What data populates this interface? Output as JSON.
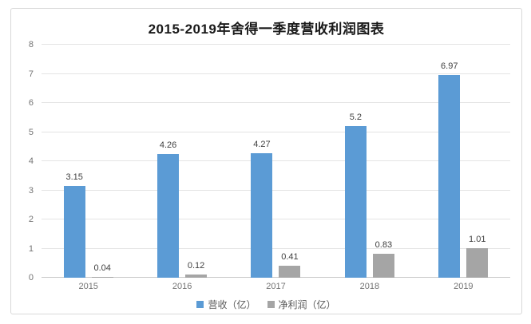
{
  "chart_data": {
    "type": "bar",
    "title": "2015-2019年舍得一季度营收利润图表",
    "categories": [
      "2015",
      "2016",
      "2017",
      "2018",
      "2019"
    ],
    "series": [
      {
        "name": "营收（亿）",
        "color": "#5B9BD5",
        "values": [
          3.15,
          4.26,
          4.27,
          5.2,
          6.97
        ]
      },
      {
        "name": "净利润（亿）",
        "color": "#A5A5A5",
        "values": [
          0.04,
          0.12,
          0.41,
          0.83,
          1.01
        ]
      }
    ],
    "ylim": [
      0,
      8
    ],
    "yticks": [
      0,
      1,
      2,
      3,
      4,
      5,
      6,
      7,
      8
    ],
    "grid": true,
    "legend_position": "bottom",
    "colors": {
      "border": "#D9D9D9",
      "gridline": "#E4E4E4",
      "axis_line": "#C9C9C9",
      "value_label_text": "#404040",
      "tick_label_text": "#737373",
      "title_text": "#1A1A1A"
    }
  }
}
